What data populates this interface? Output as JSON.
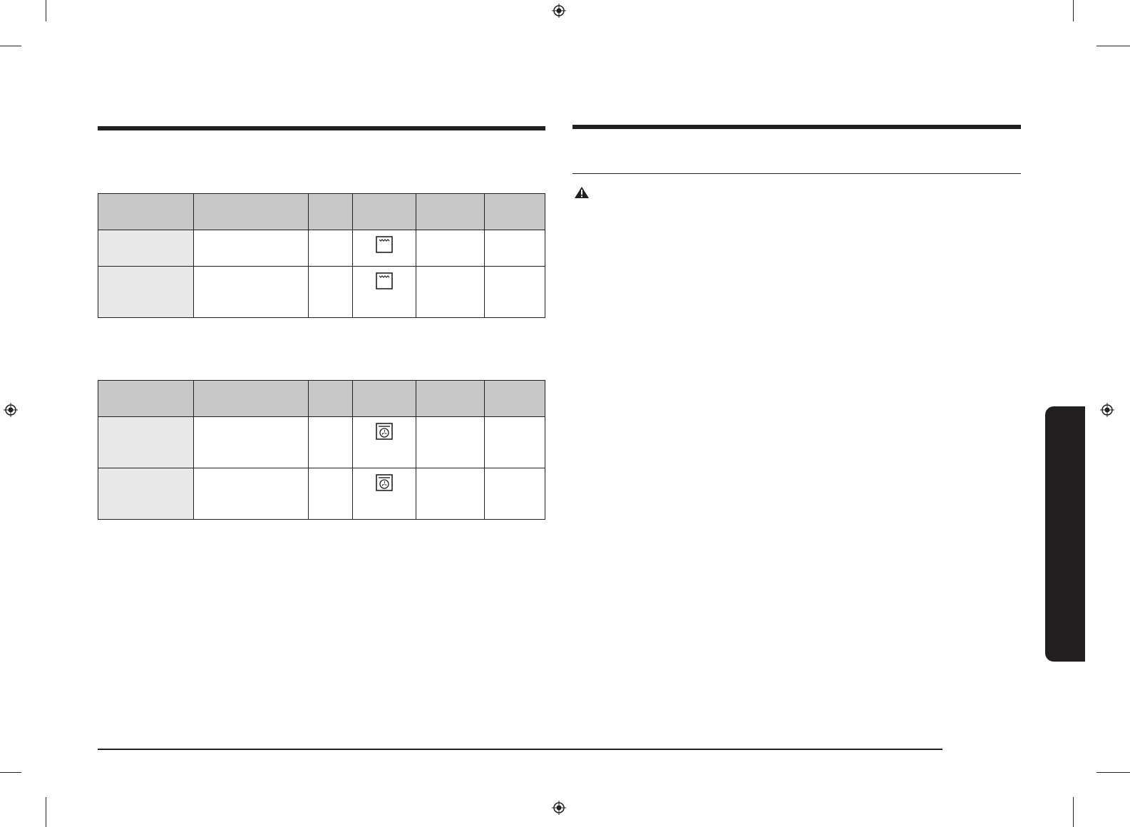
{
  "colors": {
    "ink": "#231f20",
    "header_fill": "#c8c8c8",
    "rowhead_fill": "#e8e8e8"
  },
  "left": {
    "tables": [
      {
        "header": [
          "",
          "",
          "",
          "",
          "",
          ""
        ],
        "rows": [
          {
            "cells": [
              "",
              "",
              "",
              "",
              "",
              ""
            ],
            "icon": "top-heat-oven-icon"
          },
          {
            "cells": [
              "",
              "",
              "",
              "",
              "",
              ""
            ],
            "icon": "top-heat-oven-icon"
          }
        ]
      },
      {
        "header": [
          "",
          "",
          "",
          "",
          "",
          ""
        ],
        "rows": [
          {
            "cells": [
              "",
              "",
              "",
              "",
              "",
              ""
            ],
            "icon": "fan-oven-icon"
          },
          {
            "cells": [
              "",
              "",
              "",
              "",
              "",
              ""
            ],
            "icon": "fan-oven-icon"
          }
        ]
      }
    ]
  },
  "right": {
    "warning_icon": "warning-triangle-icon"
  },
  "side_tab": {
    "color": "#231f20"
  }
}
